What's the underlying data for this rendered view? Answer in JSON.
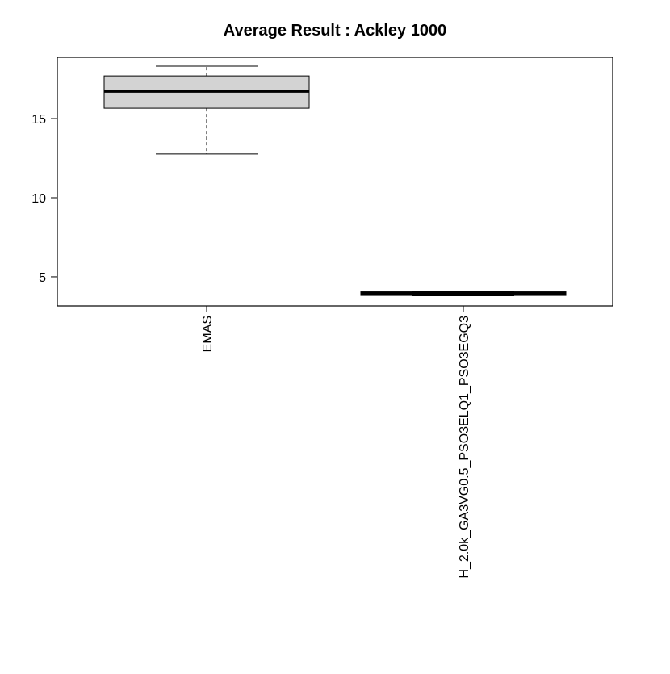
{
  "chart_data": {
    "type": "boxplot",
    "title": "Average Result : Ackley 1000",
    "categories": [
      "EMAS",
      "H_2.0k_GA3VG0.5_PSO3ELQ1_PSO3EGQ3"
    ],
    "stats": {
      "min": [
        12.76,
        3.8
      ],
      "q1": [
        15.66,
        3.82
      ],
      "median": [
        16.73,
        3.95
      ],
      "q3": [
        17.7,
        4.05
      ],
      "max": [
        18.32,
        4.08
      ]
    },
    "color": "#d3d3d3",
    "ylim": [
      3.16,
      18.88
    ],
    "yticks": [
      5,
      10,
      15
    ]
  }
}
